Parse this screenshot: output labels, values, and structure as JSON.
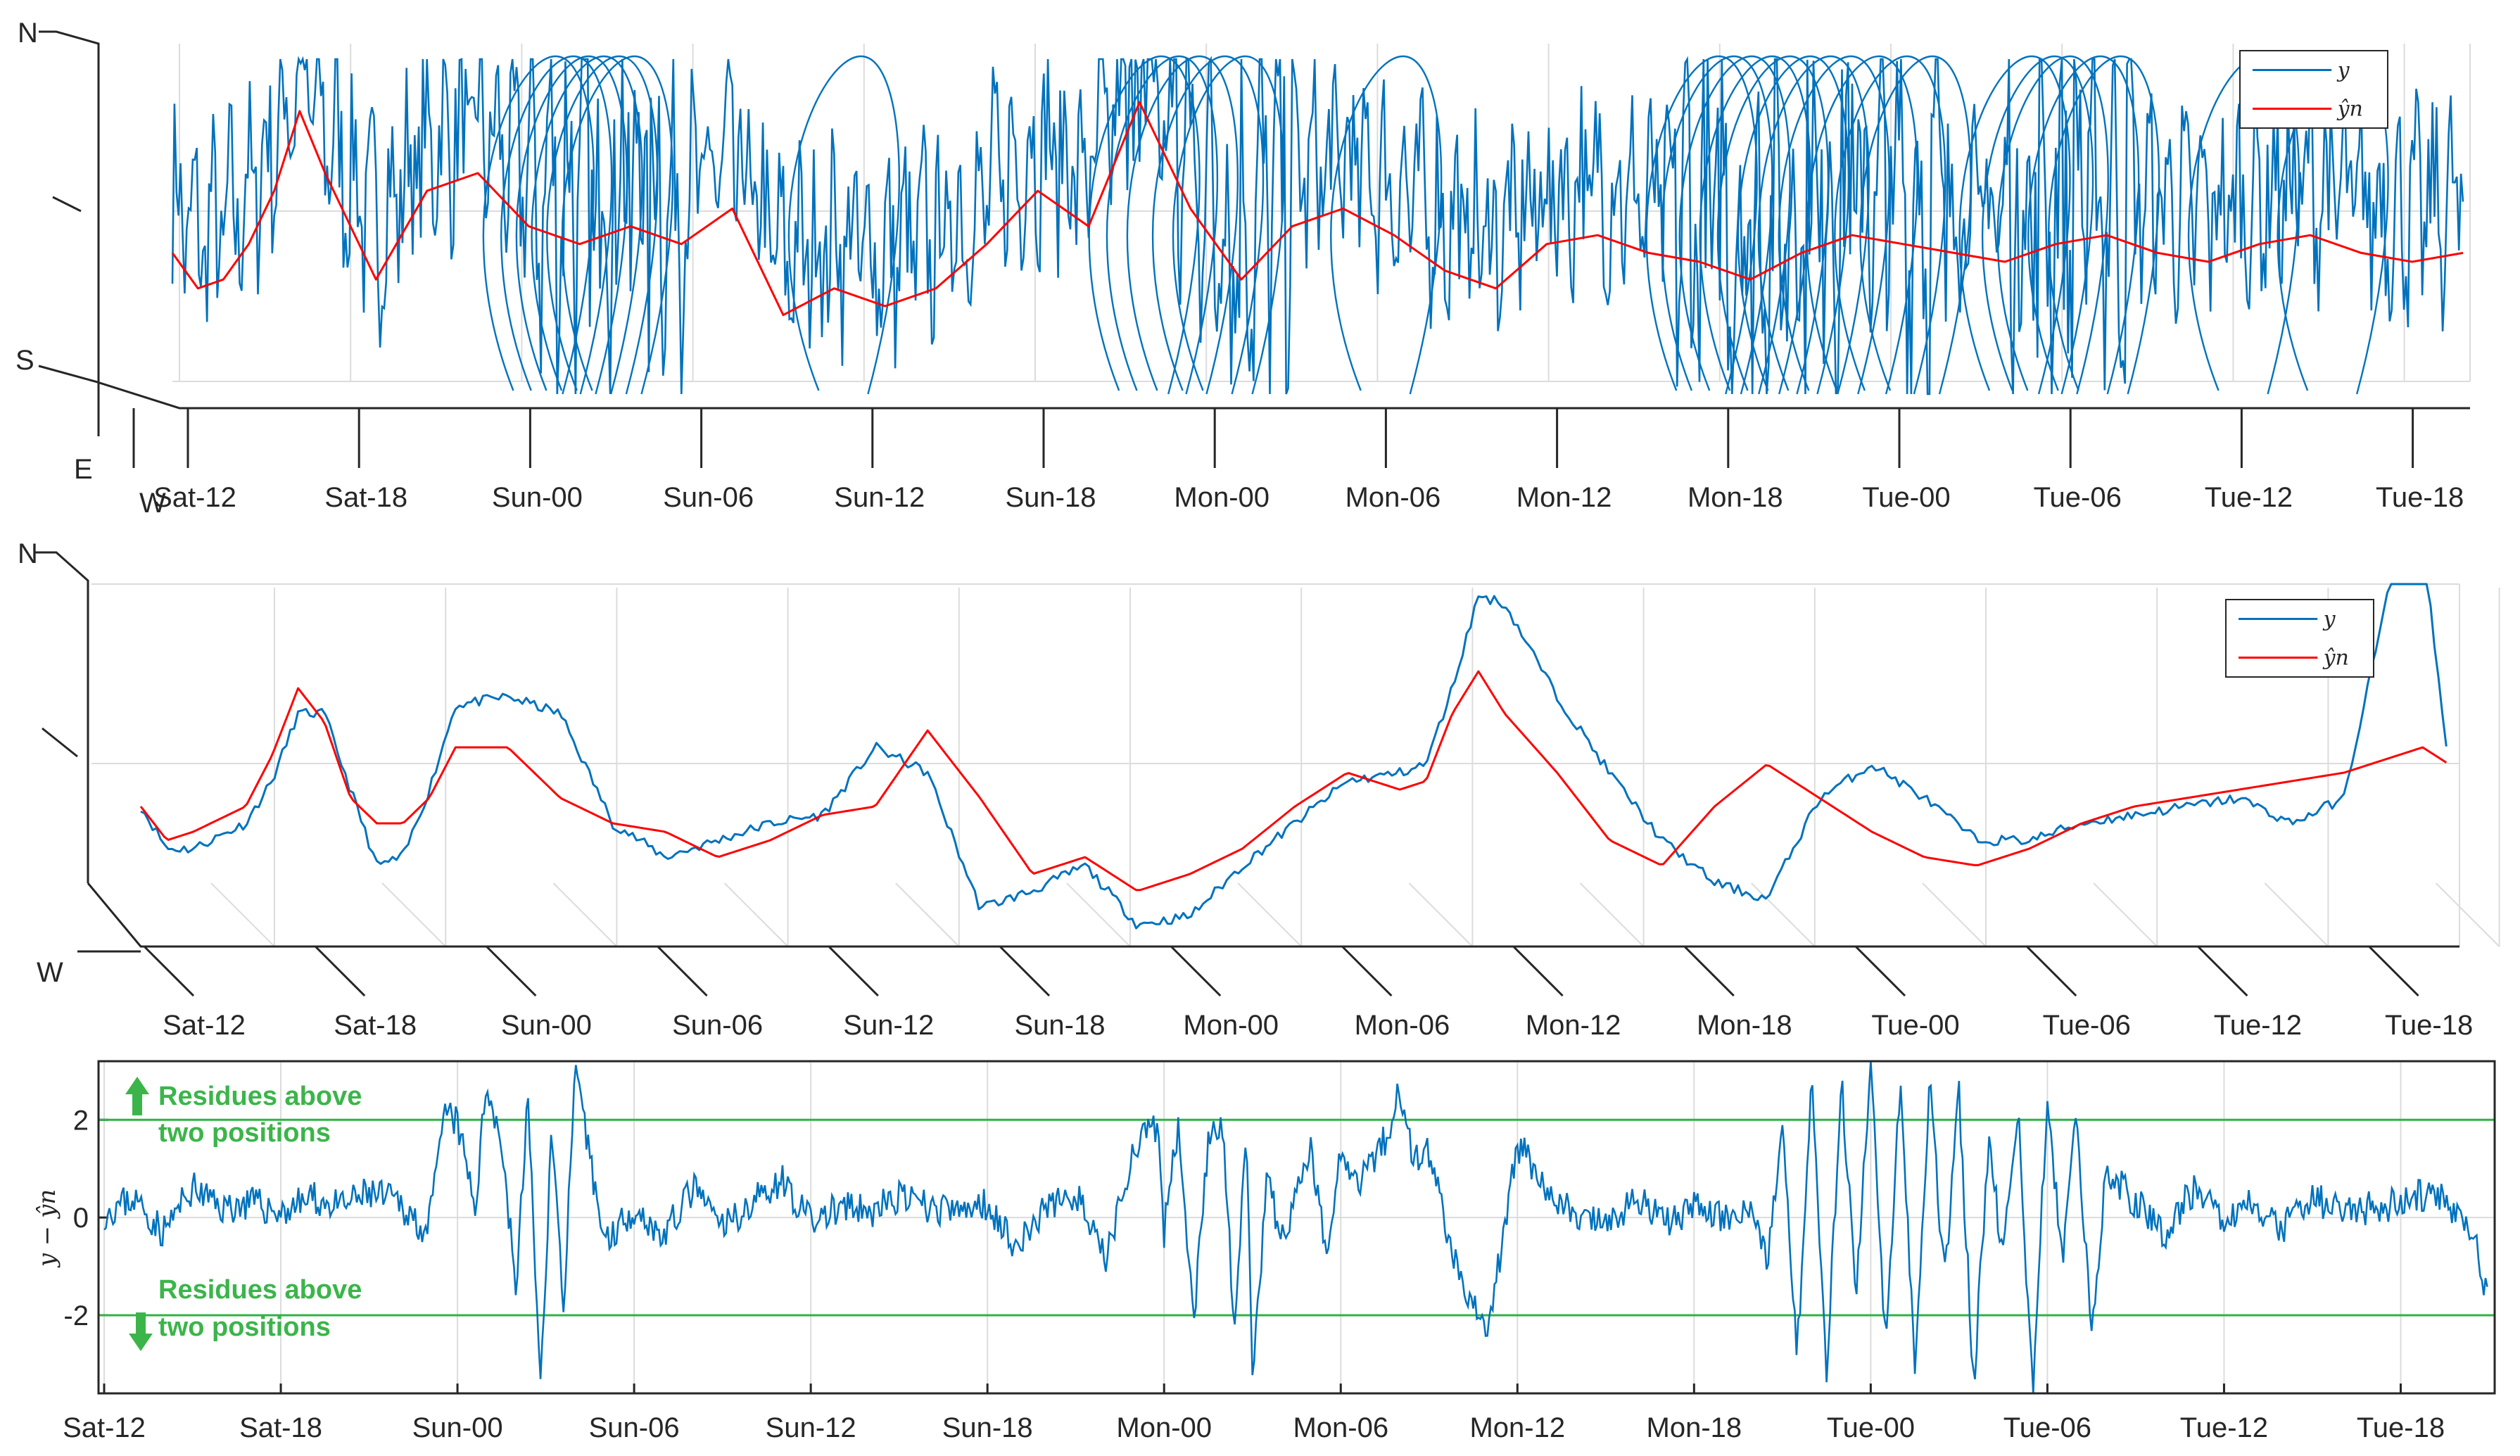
{
  "colors": {
    "y": "#0072bd",
    "yhat": "#ff0000",
    "threshold": "#2fb344",
    "note": "#3bb54a",
    "grid": "#dcdcdc",
    "axis": "#262626"
  },
  "chart_data": [
    {
      "type": "line",
      "view": "3d-oblique",
      "x_ticks": [
        "Sat-12",
        "Sat-18",
        "Sun-00",
        "Sun-06",
        "Sun-12",
        "Sun-18",
        "Mon-00",
        "Mon-06",
        "Mon-12",
        "Mon-18",
        "Tue-00",
        "Tue-06",
        "Tue-12",
        "Tue-18"
      ],
      "axis_letters": {
        "north": "N",
        "south": "S",
        "east": "E",
        "west": "W"
      },
      "legend": {
        "placement": "top-right",
        "entries": [
          "y",
          "ŷn"
        ]
      },
      "grid": true,
      "x_hours": [
        0,
        1,
        2,
        3,
        4,
        5,
        6,
        8,
        10,
        12,
        14,
        16,
        18,
        20,
        22,
        24,
        26,
        28,
        30,
        32,
        34,
        36,
        38,
        40,
        42,
        44,
        46,
        48,
        50,
        52,
        54,
        56,
        58,
        60,
        62,
        64,
        66,
        68,
        70,
        72,
        74,
        76,
        78,
        80,
        82,
        84,
        86,
        88,
        90
      ],
      "series": [
        {
          "name": "ŷn",
          "values": [
            0.1,
            -0.3,
            -0.2,
            0.2,
            0.8,
            1.7,
            1.0,
            -0.2,
            0.8,
            1.0,
            0.4,
            0.2,
            0.4,
            0.2,
            0.6,
            -0.6,
            -0.3,
            -0.5,
            -0.3,
            0.2,
            0.8,
            0.4,
            1.8,
            0.6,
            -0.2,
            0.4,
            0.6,
            0.3,
            -0.1,
            -0.3,
            0.2,
            0.3,
            0.1,
            0.0,
            -0.2,
            0.1,
            0.3,
            0.2,
            0.1,
            0.0,
            0.2,
            0.3,
            0.1,
            0.0,
            0.2,
            0.3,
            0.1,
            0.0,
            0.1
          ]
        }
      ]
    },
    {
      "type": "line",
      "view": "3d-oblique",
      "x_ticks": [
        "Sat-12",
        "Sat-18",
        "Sun-00",
        "Sun-06",
        "Sun-12",
        "Sun-18",
        "Mon-00",
        "Mon-06",
        "Mon-12",
        "Mon-18",
        "Tue-00",
        "Tue-06",
        "Tue-12",
        "Tue-18"
      ],
      "axis_letters": {
        "north": "N",
        "west": "W"
      },
      "legend": {
        "placement": "top-right",
        "entries": [
          "y",
          "ŷn"
        ]
      },
      "grid": true,
      "x_hours": [
        0,
        1,
        2,
        4,
        5,
        6,
        7,
        8,
        9,
        10,
        11,
        12,
        14,
        16,
        18,
        20,
        22,
        24,
        26,
        28,
        30,
        32,
        34,
        36,
        38,
        40,
        42,
        44,
        46,
        48,
        49,
        50,
        51,
        52,
        54,
        56,
        58,
        60,
        62,
        64,
        66,
        68,
        70,
        72,
        74,
        76,
        78,
        80,
        82,
        84,
        86,
        87,
        88
      ],
      "series": [
        {
          "name": "y",
          "values": [
            0.2,
            -0.3,
            -0.3,
            0.0,
            0.5,
            1.3,
            1.3,
            0.4,
            -0.5,
            -0.4,
            0.4,
            1.4,
            1.5,
            1.3,
            0.0,
            -0.4,
            -0.2,
            0.0,
            0.1,
            0.9,
            0.6,
            -1.0,
            -0.8,
            -0.5,
            -1.2,
            -1.1,
            -0.5,
            0.0,
            0.5,
            0.6,
            0.7,
            1.6,
            2.7,
            2.6,
            1.5,
            0.6,
            -0.2,
            -0.7,
            -0.9,
            0.3,
            0.7,
            0.3,
            -0.2,
            -0.2,
            0.0,
            0.1,
            0.2,
            0.3,
            0.0,
            0.3,
            3.2,
            3.4,
            0.6
          ]
        },
        {
          "name": "ŷn",
          "values": [
            0.2,
            -0.2,
            -0.1,
            0.2,
            0.8,
            1.6,
            1.2,
            0.3,
            0.0,
            0.0,
            0.3,
            0.9,
            0.9,
            0.3,
            0.0,
            -0.1,
            -0.4,
            -0.2,
            0.1,
            0.2,
            1.1,
            0.3,
            -0.6,
            -0.4,
            -0.8,
            -0.6,
            -0.3,
            0.2,
            0.6,
            0.4,
            0.5,
            1.3,
            1.8,
            1.3,
            0.6,
            -0.2,
            -0.5,
            0.2,
            0.7,
            0.3,
            -0.1,
            -0.4,
            -0.5,
            -0.3,
            0.0,
            0.2,
            0.3,
            0.4,
            0.5,
            0.6,
            0.8,
            0.9,
            0.7
          ]
        }
      ]
    },
    {
      "type": "line",
      "ylabel": "y − ŷn",
      "x_ticks": [
        "Sat-12",
        "Sat-18",
        "Sun-00",
        "Sun-06",
        "Sun-12",
        "Sun-18",
        "Mon-00",
        "Mon-06",
        "Mon-12",
        "Mon-18",
        "Tue-00",
        "Tue-06",
        "Tue-12",
        "Tue-18"
      ],
      "y_ticks": [
        -2,
        0,
        2
      ],
      "xlim_hours": [
        0,
        81
      ],
      "ylim": [
        -3.6,
        3.2
      ],
      "grid": true,
      "thresholds": [
        2,
        -2
      ],
      "annotations": [
        {
          "line1": "Residues above",
          "line2": "two positions",
          "direction": "up"
        },
        {
          "line1": "Residues above",
          "line2": "two positions",
          "direction": "down"
        }
      ],
      "series": [
        {
          "name": "residue",
          "x_hours": [
            0,
            1,
            2,
            3,
            4,
            5,
            6,
            7,
            8,
            9,
            10,
            11,
            11.6,
            12,
            12.6,
            13,
            13.5,
            14,
            14.4,
            14.8,
            15.2,
            15.6,
            16,
            17,
            18,
            19,
            20,
            21,
            22,
            23,
            24,
            25,
            26,
            27,
            28,
            29,
            30,
            31,
            32,
            33,
            34,
            35,
            35.8,
            36,
            36.5,
            37,
            37.5,
            38,
            38.4,
            38.8,
            39,
            39.5,
            40,
            41,
            41.5,
            42,
            42.5,
            43,
            43.5,
            44,
            44.5,
            45,
            46,
            47,
            48,
            49,
            50,
            51,
            52,
            53,
            54,
            55,
            56,
            56.5,
            57,
            57.5,
            58,
            58.5,
            59,
            59.5,
            60,
            60.5,
            61,
            61.5,
            62,
            62.5,
            63,
            63.5,
            64,
            64.5,
            65,
            65.5,
            66,
            66.5,
            67,
            67.5,
            68,
            69,
            70,
            71,
            72,
            73,
            74,
            75,
            76,
            77,
            78,
            79,
            80,
            80.5,
            81
          ],
          "values": [
            0.1,
            0.4,
            -0.3,
            0.6,
            0.2,
            0.3,
            0.1,
            0.4,
            0.2,
            0.5,
            0.3,
            -0.3,
            2.2,
            1.9,
            0.2,
            2.8,
            1.5,
            -1.5,
            2.6,
            -3.6,
            1.8,
            -1.8,
            2.9,
            -0.5,
            0.2,
            -0.4,
            0.6,
            -0.2,
            0.3,
            0.8,
            -0.1,
            0.2,
            0.1,
            0.4,
            0.2,
            0.1,
            0.3,
            -0.6,
            0.2,
            0.5,
            -0.9,
            1.5,
            1.8,
            -0.3,
            2.0,
            -2.1,
            1.6,
            1.8,
            -2.5,
            1.9,
            -3.5,
            0.8,
            -0.5,
            1.4,
            -0.8,
            1.5,
            0.7,
            1.1,
            1.6,
            2.6,
            1.2,
            1.3,
            -1.2,
            -2.4,
            1.5,
            0.6,
            0.0,
            -0.2,
            0.4,
            -0.1,
            0.2,
            0.0,
            0.1,
            -0.8,
            1.9,
            -2.8,
            3.0,
            -3.2,
            2.8,
            -1.5,
            3.1,
            -2.6,
            2.9,
            -3.0,
            2.8,
            -1.3,
            2.5,
            -3.5,
            1.6,
            -0.8,
            2.2,
            -3.6,
            2.6,
            -1.0,
            2.1,
            -2.5,
            1.0,
            0.3,
            -0.3,
            0.6,
            0.0,
            0.3,
            -0.2,
            0.4,
            0.1,
            0.2,
            0.3,
            0.5,
            0.1,
            -0.3,
            -1.9
          ]
        }
      ]
    }
  ]
}
